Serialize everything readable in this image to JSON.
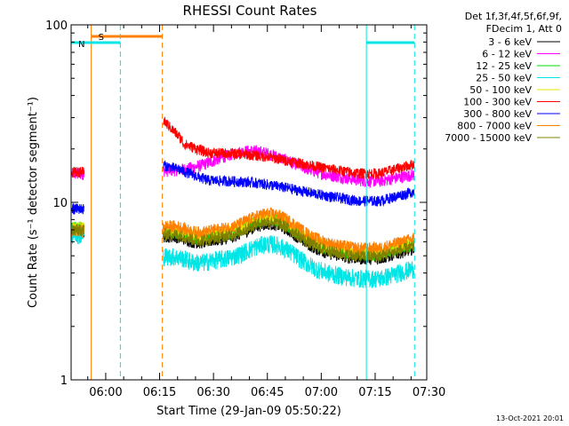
{
  "chart_data": {
    "type": "line",
    "title": "RHESSI Count Rates",
    "xlabel": "Start Time (29-Jan-09 05:50:22)",
    "ylabel": "Count Rate (s⁻¹ detector segment⁻¹)",
    "y_scale": "log",
    "ylim": [
      1,
      100
    ],
    "y_ticks": [
      "1",
      "10",
      "100"
    ],
    "x_range_minutes": [
      0,
      99
    ],
    "x_ticks": [
      "06:00",
      "06:15",
      "06:30",
      "06:45",
      "07:00",
      "07:15",
      "07:30"
    ],
    "legend_header": [
      "Det 1f,3f,4f,5f,6f,9f,",
      "FDecim 1, Att 0"
    ],
    "legend_position": "right",
    "timestamp": "13-Oct-2021 20:01",
    "markers": [
      {
        "label": "S",
        "color": "#ff8000",
        "start_min": 5.6,
        "end_min": 25.4
      },
      {
        "label": "N",
        "color": "#00e5e5",
        "start_min": 0,
        "end_min": 13.7
      },
      {
        "label": "N",
        "color": "#00e5e5",
        "start_min": 82.2,
        "end_min": 95.6
      }
    ],
    "series": [
      {
        "name": "3 - 6 keV",
        "color": "#000000",
        "level": 0
      },
      {
        "name": "6 - 12 keV",
        "color": "#ff00ff",
        "level": 1
      },
      {
        "name": "12 - 25 keV",
        "color": "#00dd00",
        "level": 2
      },
      {
        "name": "25 - 50 keV",
        "color": "#00e5e5",
        "level": 3
      },
      {
        "name": "50 - 100 keV",
        "color": "#e5e500",
        "level": 4
      },
      {
        "name": "100 - 300 keV",
        "color": "#ff0000",
        "level": 5
      },
      {
        "name": "300 - 800 keV",
        "color": "#0000ff",
        "level": 6
      },
      {
        "name": "800 - 7000 keV",
        "color": "#ff8000",
        "level": 7
      },
      {
        "name": "7000 - 15000 keV",
        "color": "#808000",
        "level": 8
      }
    ]
  }
}
